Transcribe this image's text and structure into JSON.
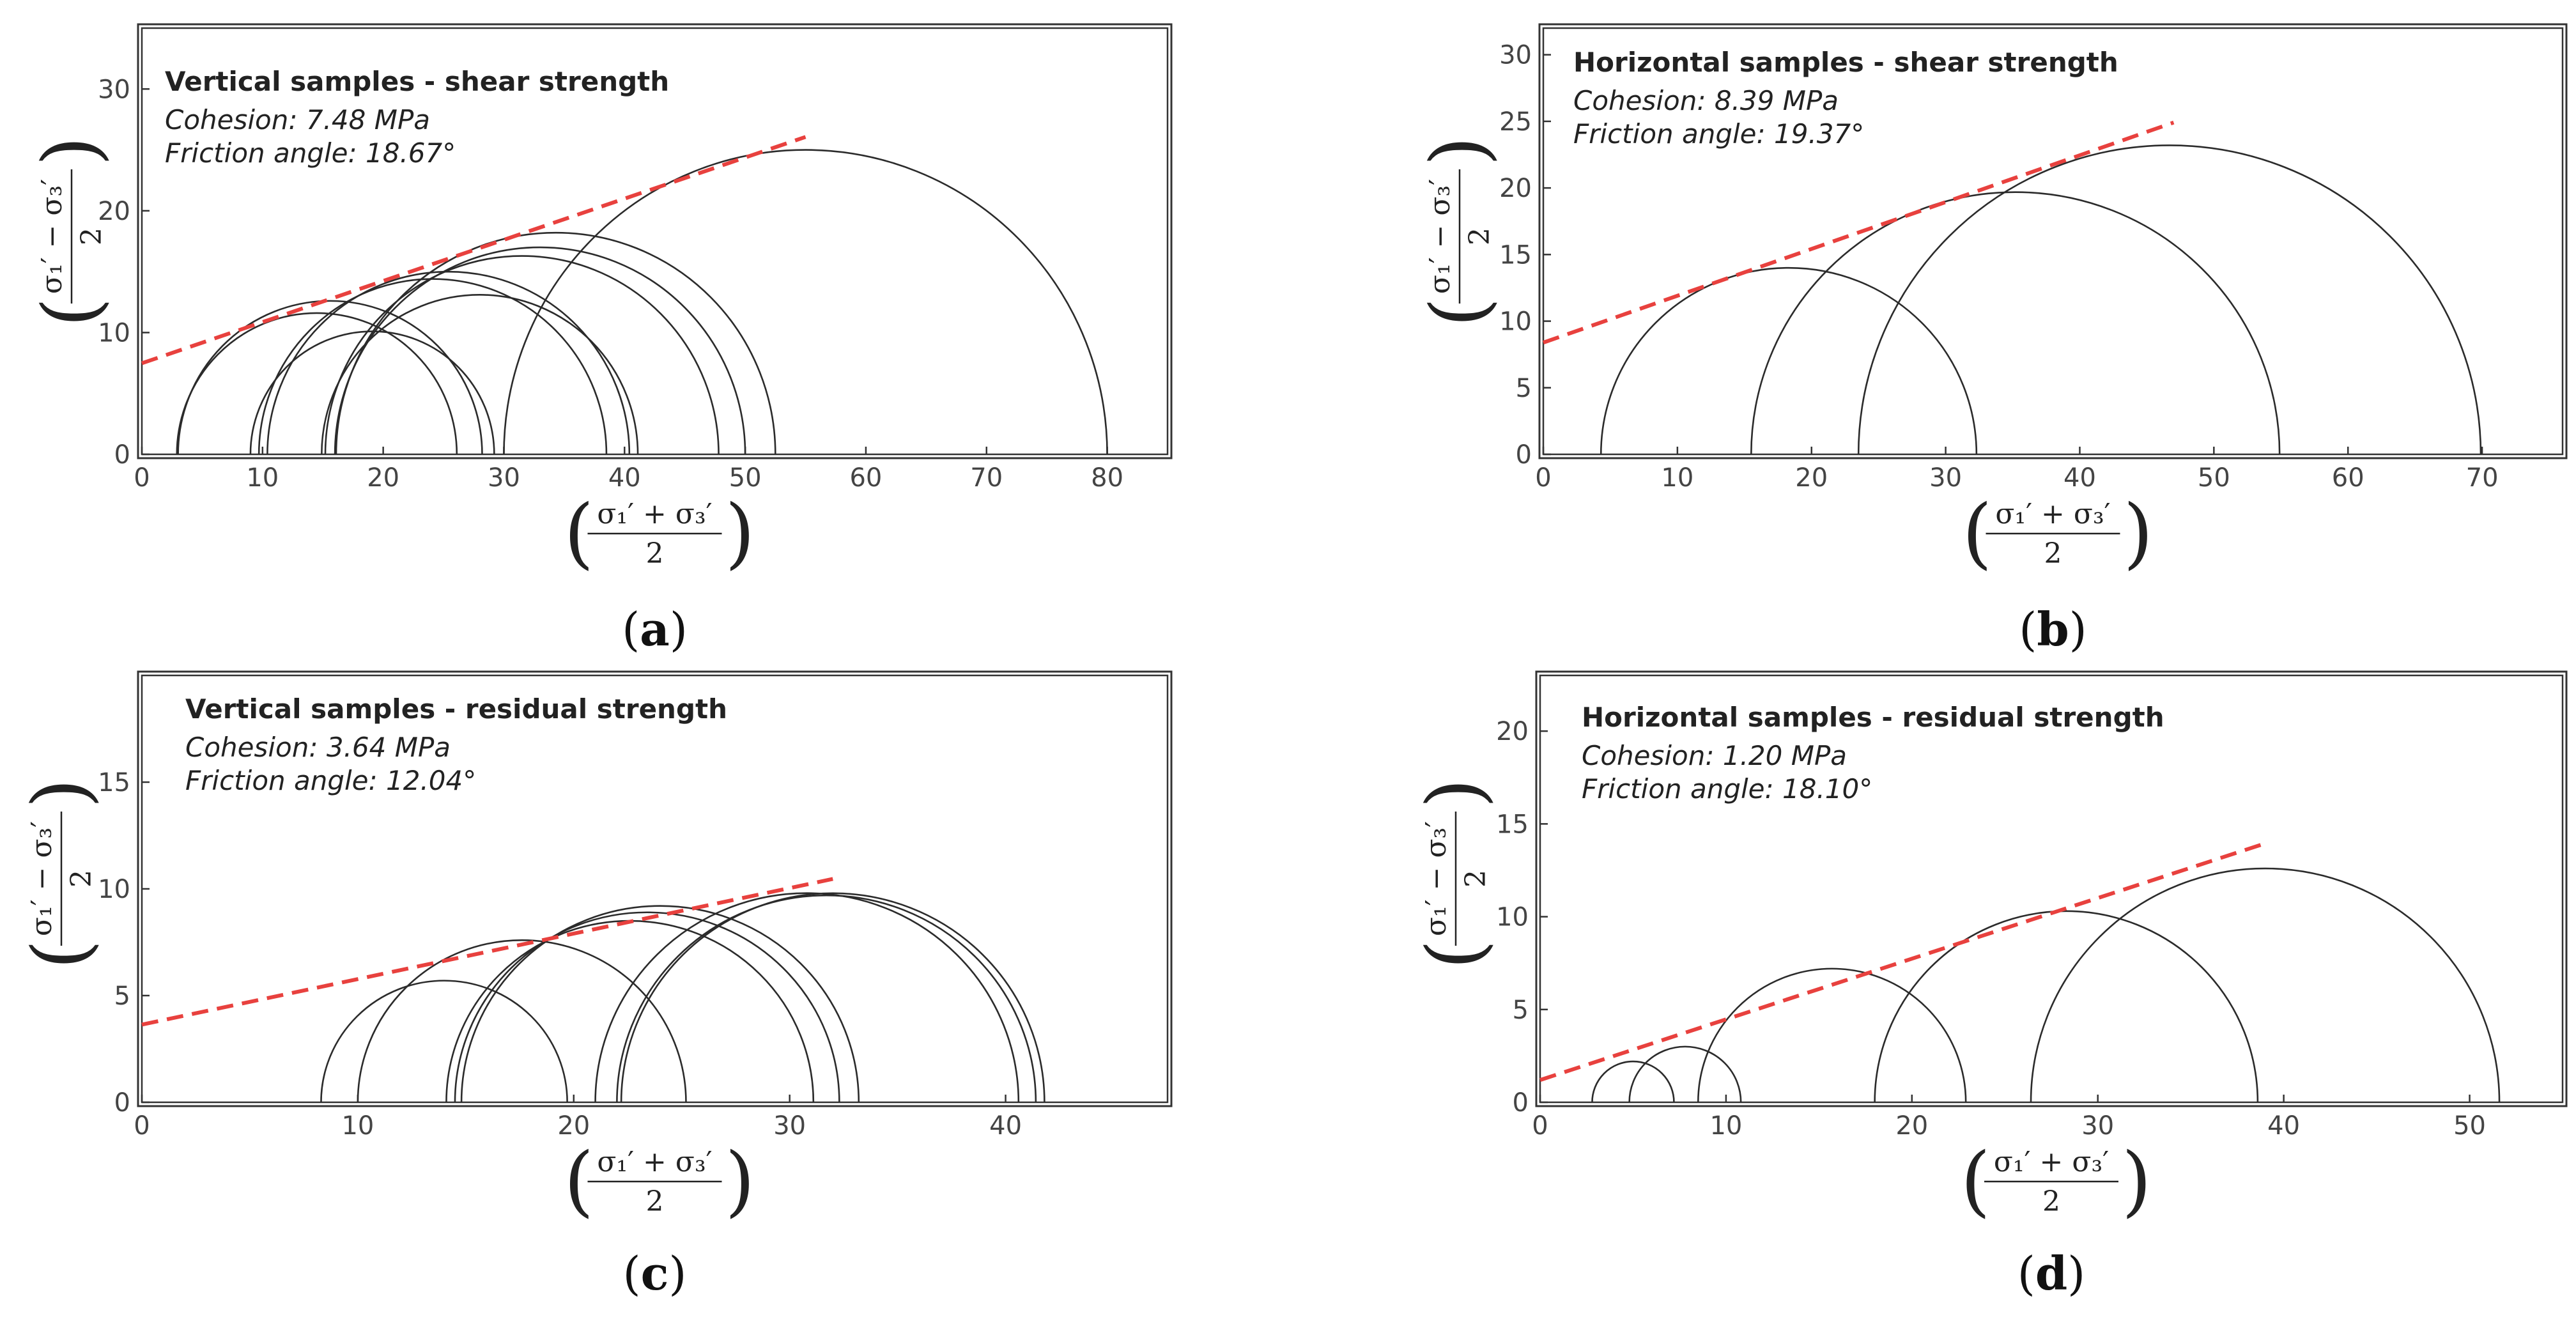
{
  "figure": {
    "xlabel_num": "σ₁′ + σ₃′",
    "ylabel_num": "σ₁′ − σ₃′",
    "label_den": "2"
  },
  "chart_data": [
    {
      "type": "line",
      "panel": "a",
      "caption_open": "(",
      "caption_letter": "a",
      "caption_close": ")",
      "title": "Vertical samples - shear strength",
      "annotations": [
        "Cohesion: 7.48 MPa",
        "Friction angle: 18.67°"
      ],
      "xlabel": "(σ1' + σ3') / 2",
      "ylabel": "(σ1' − σ3') / 2",
      "xlim": [
        0,
        85
      ],
      "ylim": [
        0,
        35
      ],
      "xticks": [
        0,
        10,
        20,
        30,
        40,
        50,
        60,
        70,
        80
      ],
      "yticks": [
        0,
        10,
        20,
        30
      ],
      "circles": [
        [
          15.6,
          12.6
        ],
        [
          14.5,
          11.6
        ],
        [
          19.1,
          10.1
        ],
        [
          24.1,
          14.4
        ],
        [
          25.4,
          15.0
        ],
        [
          28.0,
          13.1
        ],
        [
          31.5,
          16.3
        ],
        [
          33.0,
          17.0
        ],
        [
          34.3,
          18.2
        ],
        [
          55.0,
          25.0
        ]
      ],
      "envelope": {
        "cohesion": 7.48,
        "friction_angle_deg": 18.67,
        "x_range": [
          0,
          55
        ]
      }
    },
    {
      "type": "line",
      "panel": "b",
      "caption_open": "(",
      "caption_letter": "b",
      "caption_close": ")",
      "title": "Horizontal samples - shear strength",
      "annotations": [
        "Cohesion: 8.39 MPa",
        "Friction angle: 19.37°"
      ],
      "xlabel": "(σ1' + σ3') / 2",
      "ylabel": "(σ1' − σ3') / 2",
      "xlim": [
        0,
        76
      ],
      "ylim": [
        0,
        32
      ],
      "xticks": [
        0,
        10,
        20,
        30,
        40,
        50,
        60,
        70
      ],
      "yticks": [
        0,
        5,
        10,
        15,
        20,
        25,
        30
      ],
      "circles": [
        [
          18.3,
          14.0
        ],
        [
          35.2,
          19.7
        ],
        [
          46.7,
          23.2
        ]
      ],
      "envelope": {
        "cohesion": 8.39,
        "friction_angle_deg": 19.37,
        "x_range": [
          0,
          47
        ]
      }
    },
    {
      "type": "line",
      "panel": "c",
      "caption_open": "(",
      "caption_letter": "c",
      "caption_close": ")",
      "title": "Vertical samples - residual strength",
      "annotations": [
        "Cohesion: 3.64 MPa",
        "Friction angle: 12.04°"
      ],
      "xlabel": "(σ1' + σ3') / 2",
      "ylabel": "(σ1' − σ3') / 2",
      "xlim": [
        0,
        47.5
      ],
      "ylim": [
        0,
        20
      ],
      "xticks": [
        0,
        10,
        20,
        30,
        40
      ],
      "yticks": [
        0,
        5,
        10,
        15
      ],
      "circles": [
        [
          14.0,
          5.7
        ],
        [
          17.6,
          7.6
        ],
        [
          22.6,
          8.5
        ],
        [
          23.4,
          8.9
        ],
        [
          24.0,
          9.2
        ],
        [
          30.8,
          9.8
        ],
        [
          31.7,
          9.7
        ],
        [
          32.0,
          9.8
        ]
      ],
      "envelope": {
        "cohesion": 3.64,
        "friction_angle_deg": 12.04,
        "x_range": [
          0,
          32
        ]
      }
    },
    {
      "type": "line",
      "panel": "d",
      "caption_open": "(",
      "caption_letter": "d",
      "caption_close": ")",
      "title": "Horizontal samples - residual strength",
      "annotations": [
        "Cohesion: 1.20 MPa",
        "Friction angle: 18.10°"
      ],
      "xlabel": "(σ1' + σ3') / 2",
      "ylabel": "(σ1' − σ3') / 2",
      "xlim": [
        0,
        55
      ],
      "ylim": [
        0,
        23
      ],
      "xticks": [
        0,
        10,
        20,
        30,
        40,
        50
      ],
      "yticks": [
        0,
        5,
        10,
        15,
        20
      ],
      "circles": [
        [
          5.0,
          2.2
        ],
        [
          7.8,
          3.0
        ],
        [
          15.7,
          7.2
        ],
        [
          28.3,
          10.3
        ],
        [
          39.0,
          12.6
        ]
      ],
      "envelope": {
        "cohesion": 1.2,
        "friction_angle_deg": 18.1,
        "x_range": [
          0,
          39
        ]
      }
    }
  ],
  "colors": {
    "circle": "#2b2b2b",
    "envelope": "#e8413e",
    "frame": "#333333",
    "text": "#222222"
  }
}
